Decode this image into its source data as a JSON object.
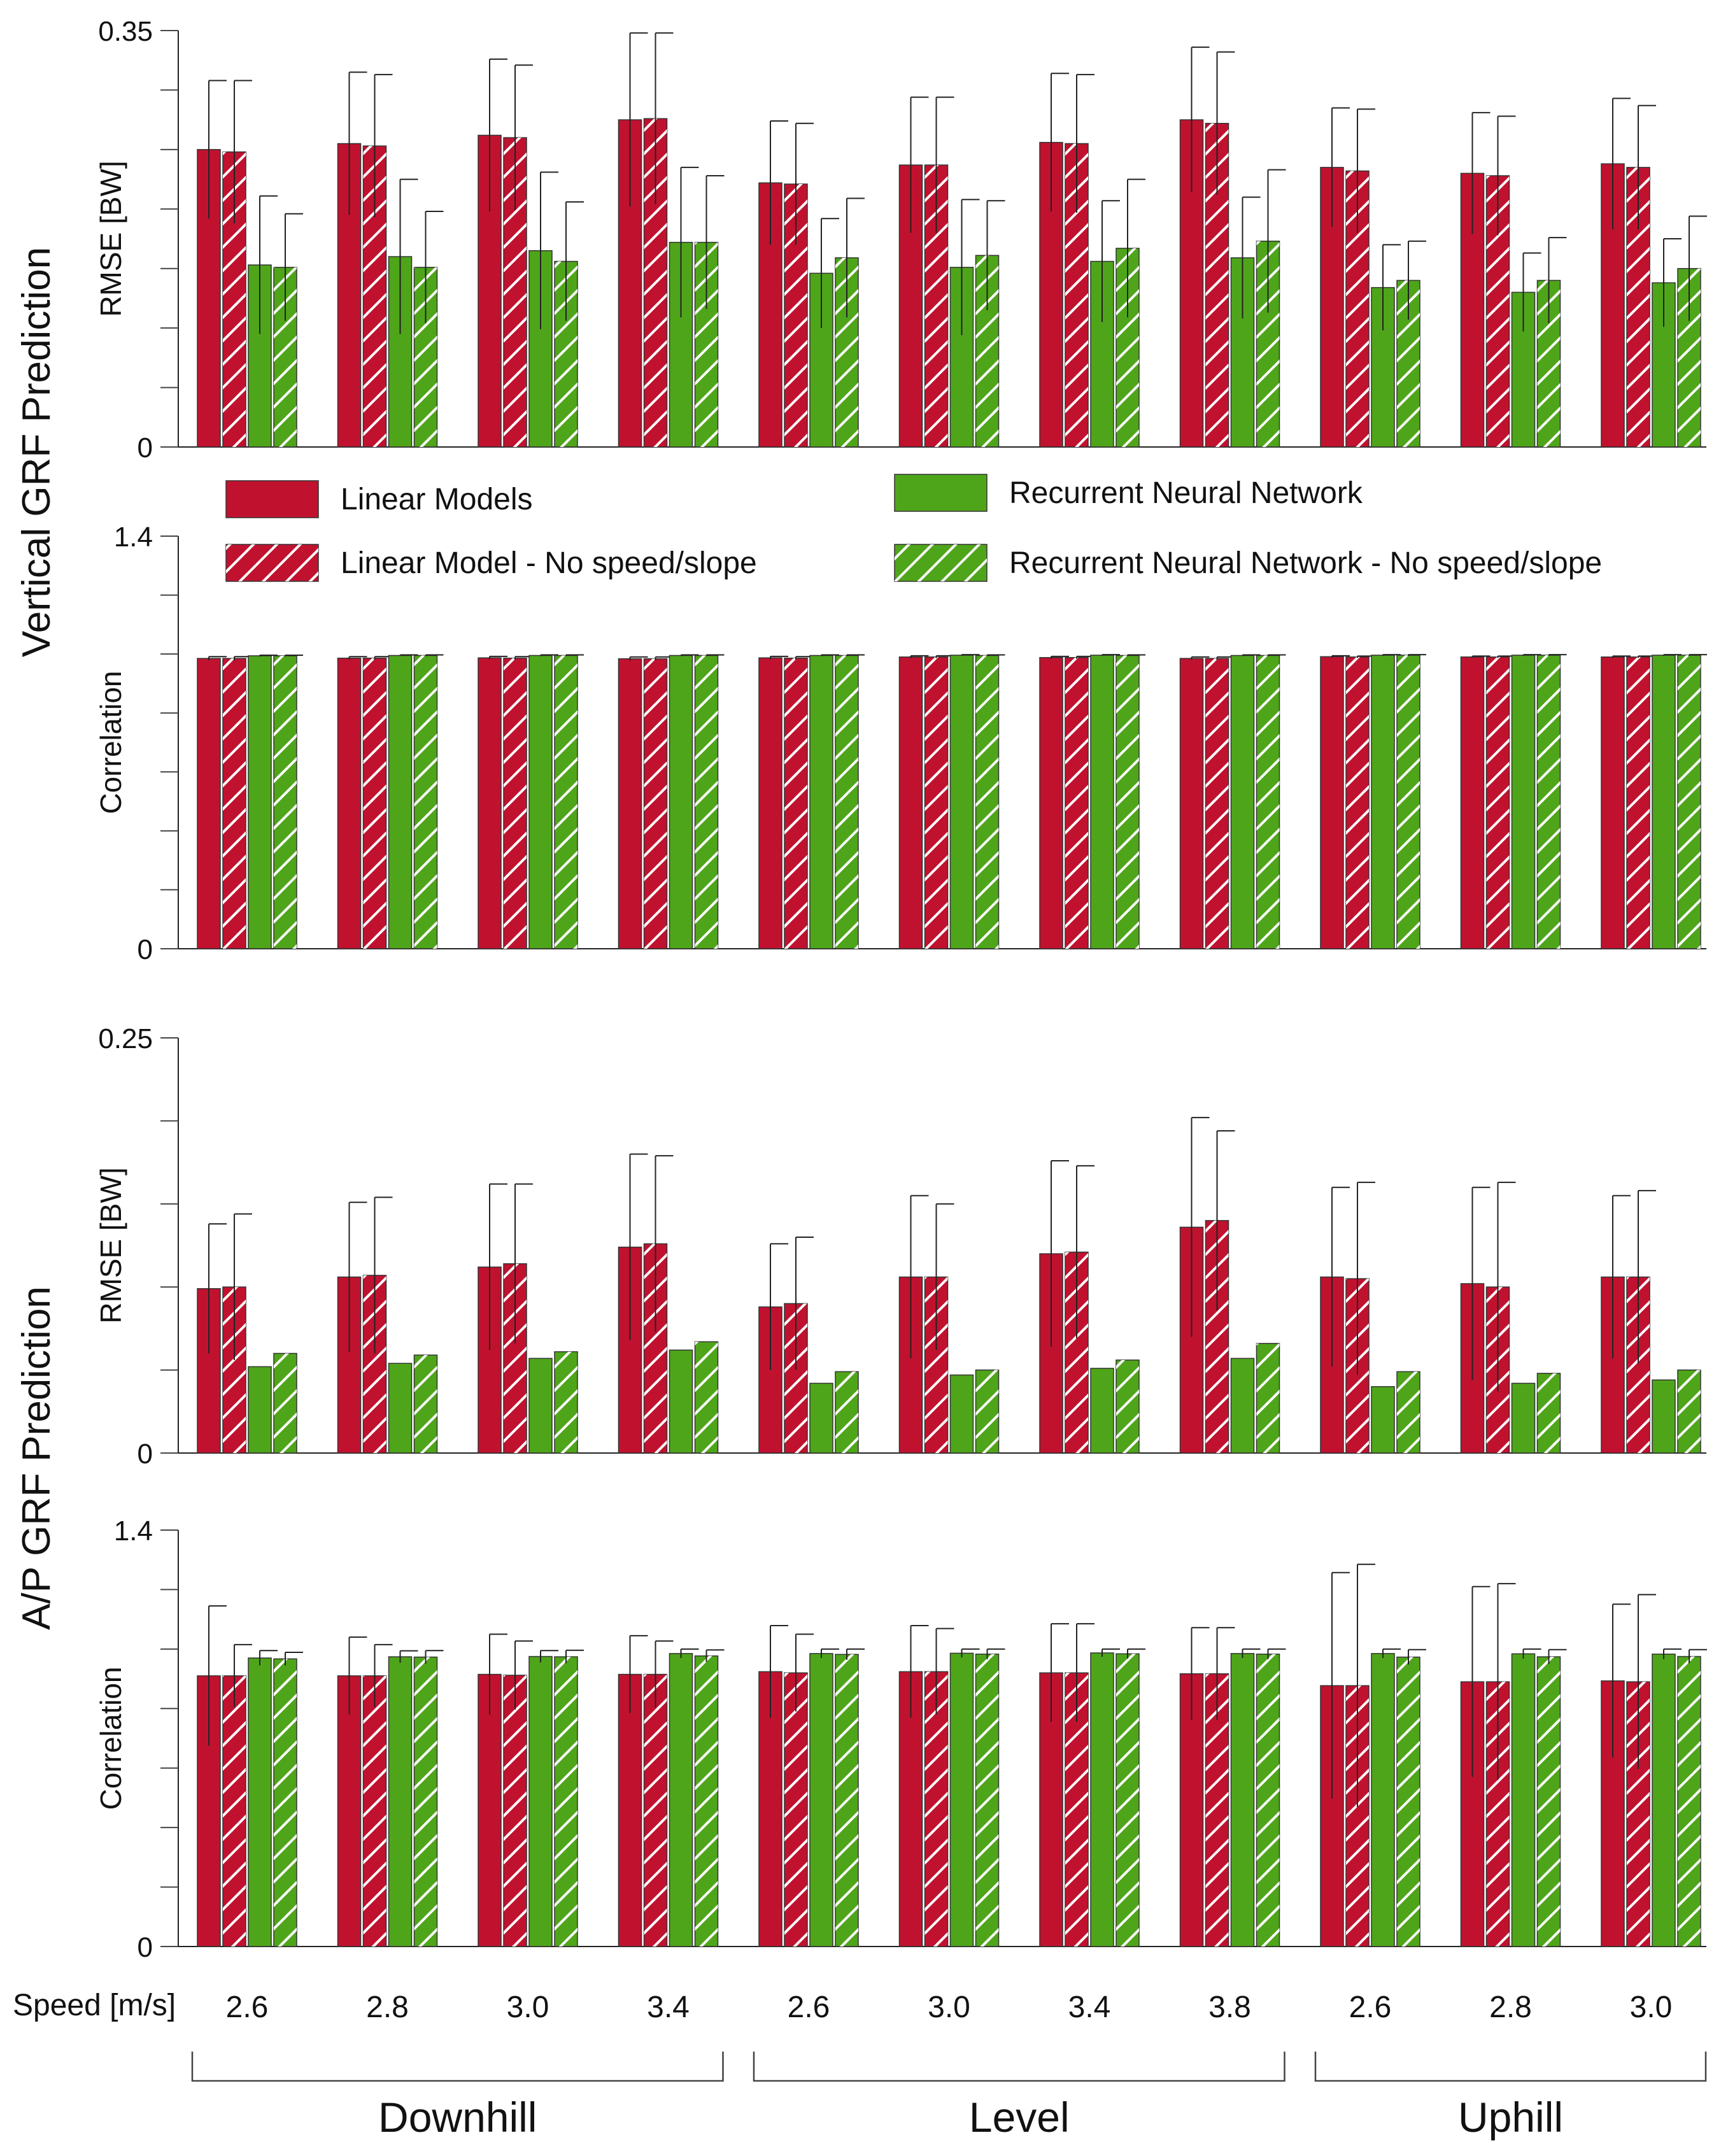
{
  "colors": {
    "linear": "#c0122f",
    "rnn": "#4fa51a",
    "hatch": "#ffffff",
    "axis": "#222222",
    "grid": "#444444"
  },
  "legend": [
    {
      "label": "Linear Models",
      "model": "linear",
      "hatched": false
    },
    {
      "label": "Linear Model - No speed/slope",
      "model": "linear",
      "hatched": true
    },
    {
      "label": "Recurrent Neural Network",
      "model": "rnn",
      "hatched": false
    },
    {
      "label": "Recurrent Neural Network - No speed/slope",
      "model": "rnn",
      "hatched": true
    }
  ],
  "section_titles": {
    "vertical": "Vertical GRF Prediction",
    "ap": "A/P GRF Prediction"
  },
  "x_axis": {
    "label": "Speed [m/s]",
    "speeds": [
      "2.6",
      "2.8",
      "3.0",
      "3.4",
      "2.6",
      "3.0",
      "3.4",
      "3.8",
      "2.6",
      "2.8",
      "3.0"
    ],
    "groups": [
      {
        "label": "Downhill",
        "from": 0,
        "to": 3
      },
      {
        "label": "Level",
        "from": 4,
        "to": 7
      },
      {
        "label": "Uphill",
        "from": 8,
        "to": 10
      }
    ]
  },
  "chart_data": [
    {
      "type": "bar",
      "section": "vertical",
      "ylabel": "RMSE [BW]",
      "ylim": [
        0,
        0.35
      ],
      "ytick_labels": [
        "0",
        "0.35"
      ],
      "ytick_count": 8,
      "categories": [
        "2.6",
        "2.8",
        "3.0",
        "3.4",
        "2.6",
        "3.0",
        "3.4",
        "3.8",
        "2.6",
        "2.8",
        "3.0"
      ],
      "series": [
        {
          "name": "Linear Models",
          "values": [
            0.25,
            0.255,
            0.262,
            0.275,
            0.222,
            0.237,
            0.256,
            0.275,
            0.235,
            0.23,
            0.238
          ],
          "errors": [
            0.058,
            0.06,
            0.064,
            0.073,
            0.052,
            0.057,
            0.058,
            0.061,
            0.05,
            0.051,
            0.055
          ]
        },
        {
          "name": "Linear Model - No speed/slope",
          "values": [
            0.248,
            0.253,
            0.26,
            0.276,
            0.221,
            0.237,
            0.255,
            0.272,
            0.232,
            0.228,
            0.235
          ],
          "errors": [
            0.06,
            0.06,
            0.061,
            0.072,
            0.051,
            0.057,
            0.058,
            0.06,
            0.052,
            0.05,
            0.052
          ]
        },
        {
          "name": "Recurrent Neural Network",
          "values": [
            0.153,
            0.16,
            0.165,
            0.172,
            0.146,
            0.151,
            0.156,
            0.159,
            0.134,
            0.13,
            0.138
          ],
          "errors": [
            0.058,
            0.065,
            0.066,
            0.063,
            0.046,
            0.057,
            0.051,
            0.051,
            0.036,
            0.033,
            0.037
          ]
        },
        {
          "name": "Recurrent Neural Network - No speed/slope",
          "values": [
            0.151,
            0.151,
            0.156,
            0.172,
            0.159,
            0.161,
            0.167,
            0.173,
            0.14,
            0.14,
            0.15
          ],
          "errors": [
            0.045,
            0.047,
            0.05,
            0.056,
            0.05,
            0.046,
            0.058,
            0.06,
            0.033,
            0.036,
            0.044
          ]
        }
      ]
    },
    {
      "type": "bar",
      "section": "vertical",
      "ylabel": "Correlation",
      "ylim": [
        0,
        1.4
      ],
      "ytick_labels": [
        "0",
        "1.4"
      ],
      "ytick_count": 8,
      "categories": [
        "2.6",
        "2.8",
        "3.0",
        "3.4",
        "2.6",
        "3.0",
        "3.4",
        "3.8",
        "2.6",
        "2.8",
        "3.0"
      ],
      "series": [
        {
          "name": "Linear Models",
          "values": [
            0.985,
            0.986,
            0.987,
            0.984,
            0.987,
            0.99,
            0.988,
            0.985,
            0.991,
            0.99,
            0.99
          ],
          "errors": [
            0.006,
            0.005,
            0.005,
            0.006,
            0.005,
            0.004,
            0.004,
            0.005,
            0.003,
            0.003,
            0.003
          ]
        },
        {
          "name": "Linear Model - No speed/slope",
          "values": [
            0.985,
            0.986,
            0.986,
            0.984,
            0.986,
            0.99,
            0.988,
            0.985,
            0.99,
            0.99,
            0.99
          ],
          "errors": [
            0.006,
            0.005,
            0.005,
            0.006,
            0.005,
            0.004,
            0.004,
            0.005,
            0.003,
            0.003,
            0.003
          ]
        },
        {
          "name": "Recurrent Neural Network",
          "values": [
            0.994,
            0.995,
            0.995,
            0.995,
            0.995,
            0.996,
            0.996,
            0.995,
            0.996,
            0.996,
            0.996
          ],
          "errors": [
            0.002,
            0.002,
            0.002,
            0.002,
            0.002,
            0.002,
            0.002,
            0.002,
            0.002,
            0.002,
            0.002
          ]
        },
        {
          "name": "Recurrent Neural Network - No speed/slope",
          "values": [
            0.994,
            0.995,
            0.995,
            0.995,
            0.995,
            0.995,
            0.995,
            0.995,
            0.996,
            0.996,
            0.996
          ],
          "errors": [
            0.002,
            0.002,
            0.002,
            0.002,
            0.002,
            0.002,
            0.002,
            0.002,
            0.002,
            0.002,
            0.002
          ]
        }
      ]
    },
    {
      "type": "bar",
      "section": "ap",
      "ylabel": "RMSE [BW]",
      "ylim": [
        0,
        0.25
      ],
      "ytick_labels": [
        "0",
        "0.25"
      ],
      "ytick_count": 6,
      "categories": [
        "2.6",
        "2.8",
        "3.0",
        "3.4",
        "2.6",
        "3.0",
        "3.4",
        "3.8",
        "2.6",
        "2.8",
        "3.0"
      ],
      "series": [
        {
          "name": "Linear Models",
          "values": [
            0.099,
            0.106,
            0.112,
            0.124,
            0.088,
            0.106,
            0.12,
            0.136,
            0.106,
            0.102,
            0.106
          ],
          "errors": [
            0.039,
            0.045,
            0.05,
            0.056,
            0.038,
            0.049,
            0.056,
            0.066,
            0.054,
            0.058,
            0.049
          ]
        },
        {
          "name": "Linear Model - No speed/slope",
          "values": [
            0.1,
            0.107,
            0.114,
            0.126,
            0.09,
            0.106,
            0.121,
            0.14,
            0.105,
            0.1,
            0.106
          ],
          "errors": [
            0.044,
            0.047,
            0.048,
            0.053,
            0.04,
            0.044,
            0.052,
            0.054,
            0.058,
            0.063,
            0.052
          ]
        },
        {
          "name": "Recurrent Neural Network",
          "values": [
            0.052,
            0.054,
            0.057,
            0.062,
            0.042,
            0.047,
            0.051,
            0.057,
            0.04,
            0.042,
            0.044
          ]
        },
        {
          "name": "Recurrent Neural Network - No speed/slope",
          "values": [
            0.06,
            0.059,
            0.061,
            0.067,
            0.049,
            0.05,
            0.056,
            0.066,
            0.049,
            0.048,
            0.05
          ]
        }
      ]
    },
    {
      "type": "bar",
      "section": "ap",
      "ylabel": "Correlation",
      "ylim": [
        0,
        1.4
      ],
      "ytick_labels": [
        "0",
        "1.4"
      ],
      "ytick_count": 8,
      "categories": [
        "2.6",
        "2.8",
        "3.0",
        "3.4",
        "2.6",
        "3.0",
        "3.4",
        "3.8",
        "2.6",
        "2.8",
        "3.0"
      ],
      "series": [
        {
          "name": "Linear Models",
          "values": [
            0.91,
            0.91,
            0.915,
            0.915,
            0.924,
            0.924,
            0.92,
            0.917,
            0.877,
            0.89,
            0.893
          ],
          "errors": [
            0.235,
            0.13,
            0.135,
            0.13,
            0.155,
            0.155,
            0.165,
            0.155,
            0.38,
            0.32,
            0.258
          ]
        },
        {
          "name": "Linear Model - No speed/slope",
          "values": [
            0.91,
            0.91,
            0.912,
            0.915,
            0.92,
            0.924,
            0.92,
            0.917,
            0.877,
            0.89,
            0.89
          ],
          "errors": [
            0.105,
            0.105,
            0.115,
            0.112,
            0.13,
            0.145,
            0.165,
            0.155,
            0.408,
            0.33,
            0.293
          ]
        },
        {
          "name": "Recurrent Neural Network",
          "values": [
            0.97,
            0.974,
            0.975,
            0.985,
            0.985,
            0.986,
            0.987,
            0.985,
            0.985,
            0.984,
            0.983
          ],
          "errors": [
            0.025,
            0.02,
            0.02,
            0.015,
            0.015,
            0.014,
            0.013,
            0.015,
            0.015,
            0.016,
            0.017
          ]
        },
        {
          "name": "Recurrent Neural Network - No speed/slope",
          "values": [
            0.967,
            0.973,
            0.974,
            0.977,
            0.982,
            0.983,
            0.984,
            0.983,
            0.973,
            0.974,
            0.975
          ],
          "errors": [
            0.022,
            0.022,
            0.022,
            0.02,
            0.018,
            0.017,
            0.016,
            0.017,
            0.025,
            0.024,
            0.023
          ]
        }
      ]
    }
  ]
}
